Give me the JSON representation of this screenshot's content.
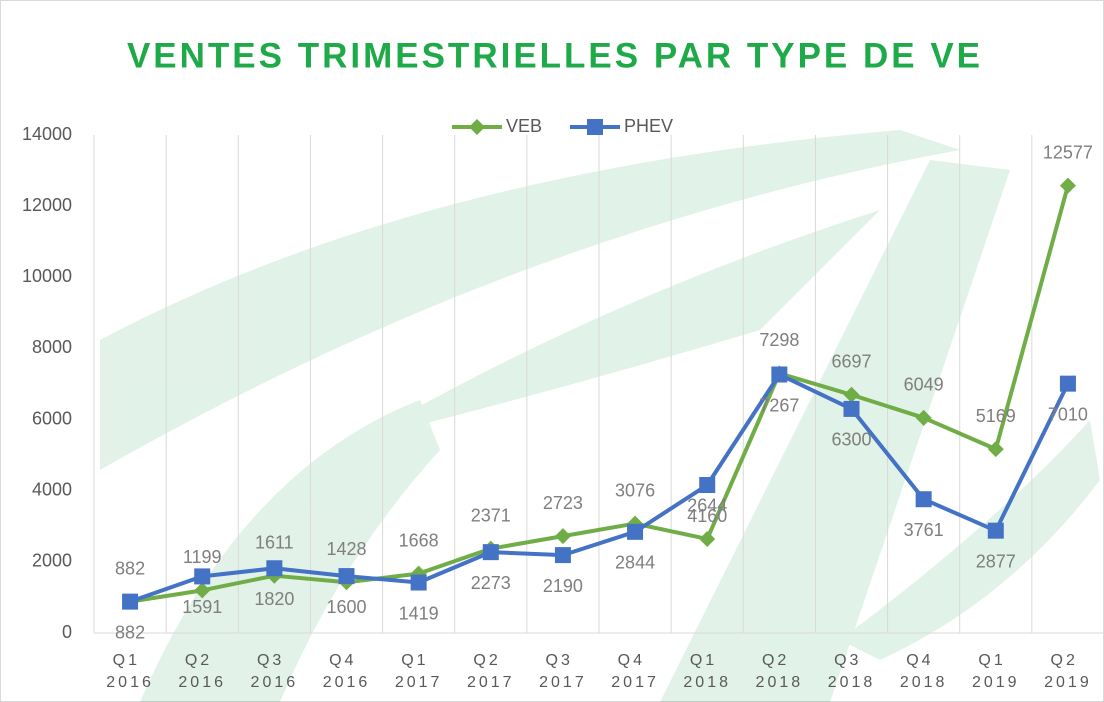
{
  "chart_data": {
    "type": "line",
    "title": "VENTES TRIMESTRIELLES PAR TYPE DE VE",
    "categories": [
      "Q1 2016",
      "Q2 2016",
      "Q3 2016",
      "Q4 2016",
      "Q1 2017",
      "Q2 2017",
      "Q3 2017",
      "Q4 2017",
      "Q1 2018",
      "Q2 2018",
      "Q3 2018",
      "Q4 2018",
      "Q1 2019",
      "Q2 2019"
    ],
    "series": [
      {
        "name": "VEB",
        "color": "#70ad47",
        "marker": "diamond",
        "values": [
          882,
          1199,
          1611,
          1428,
          1668,
          2371,
          2723,
          3076,
          2644,
          7298,
          6697,
          6049,
          5169,
          12577
        ]
      },
      {
        "name": "PHEV",
        "color": "#4472c4",
        "marker": "square",
        "values": [
          882,
          1591,
          1820,
          1600,
          1419,
          2273,
          2190,
          2844,
          4160,
          7267,
          6300,
          3761,
          2877,
          7010
        ]
      }
    ],
    "ylim": [
      0,
      14000
    ],
    "yticks": [
      0,
      2000,
      4000,
      6000,
      8000,
      10000,
      12000,
      14000
    ],
    "grid": "vertical",
    "legend": "top"
  }
}
